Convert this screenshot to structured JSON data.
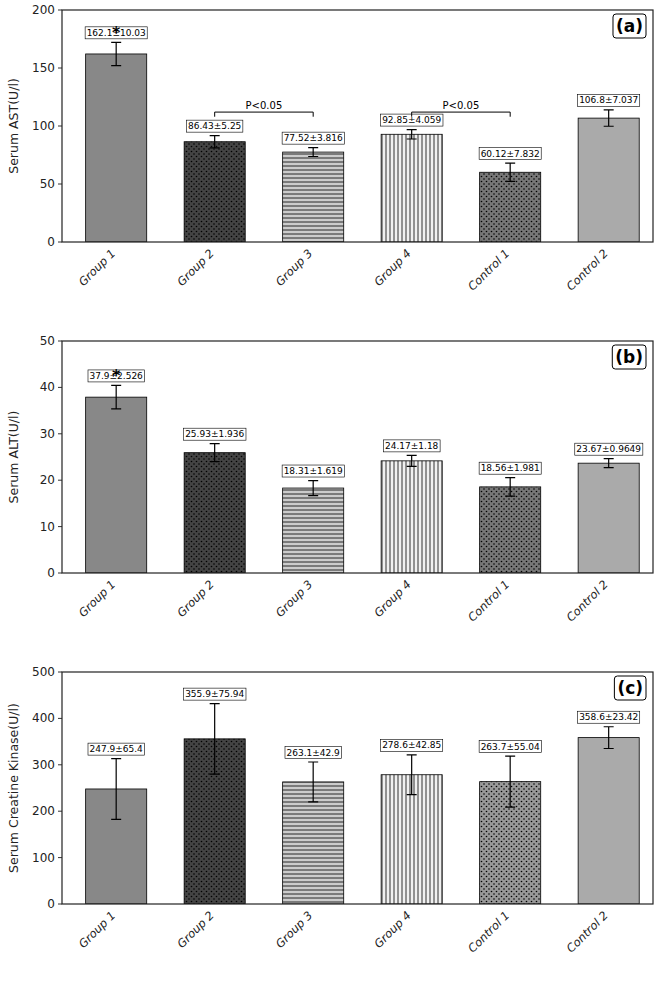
{
  "chart_data": [
    {
      "type": "bar",
      "title": "(a)",
      "ylabel": "Serum AST(U/l)",
      "categories": [
        "Group 1",
        "Group 2",
        "Group 3",
        "Group 4",
        "Control 1",
        "Control 2"
      ],
      "values": [
        162.1,
        86.43,
        77.52,
        92.85,
        60.12,
        106.8
      ],
      "errors": [
        10.03,
        5.25,
        3.816,
        4.059,
        7.832,
        7.037
      ],
      "value_labels": [
        "162.1±10.03",
        "86.43±5.25",
        "77.52±3.816",
        "92.85±4.059",
        "60.12±7.832",
        "106.8±7.037"
      ],
      "data_labels": true,
      "colors": [
        "#888888",
        "#444444",
        "#cccccc",
        "#f0f0f0",
        "#777777",
        "#aaaaaa"
      ],
      "ylim": [
        0,
        200
      ],
      "yticks": [
        0,
        50,
        100,
        150,
        200
      ],
      "grid": false,
      "annotations": [
        {
          "text": "*",
          "category": "Group 1"
        },
        {
          "text": "P<0.05",
          "between": [
            "Group 2",
            "Group 3"
          ],
          "y": 112
        },
        {
          "text": "P<0.05",
          "between": [
            "Group 4",
            "Control 1"
          ],
          "y": 112
        }
      ]
    },
    {
      "type": "bar",
      "title": "(b)",
      "ylabel": "Serum ALT(U/l)",
      "categories": [
        "Group 1",
        "Group 2",
        "Group 3",
        "Group 4",
        "Control 1",
        "Control 2"
      ],
      "values": [
        37.9,
        25.93,
        18.31,
        24.17,
        18.56,
        23.67
      ],
      "errors": [
        2.526,
        1.936,
        1.619,
        1.18,
        1.981,
        0.9649
      ],
      "value_labels": [
        "37.9±2.526",
        "25.93±1.936",
        "18.31±1.619",
        "24.17±1.18",
        "18.56±1.981",
        "23.67±0.9649"
      ],
      "data_labels": true,
      "colors": [
        "#888888",
        "#444444",
        "#cccccc",
        "#f0f0f0",
        "#777777",
        "#aaaaaa"
      ],
      "ylim": [
        0,
        50
      ],
      "yticks": [
        0,
        10,
        20,
        30,
        40,
        50
      ],
      "grid": false,
      "annotations": [
        {
          "text": "*",
          "category": "Group 1"
        }
      ]
    },
    {
      "type": "bar",
      "title": "(c)",
      "ylabel": "Serum Creatine Kinase(U/l)",
      "categories": [
        "Group 1",
        "Group 2",
        "Group 3",
        "Group 4",
        "Control 1",
        "Control 2"
      ],
      "values": [
        247.9,
        355.9,
        263.1,
        278.6,
        263.7,
        358.6
      ],
      "errors": [
        65.4,
        75.94,
        42.9,
        42.85,
        55.04,
        23.42
      ],
      "value_labels": [
        "247.9±65.4",
        "355.9±75.94",
        "263.1±42.9",
        "278.6±42.85",
        "263.7±55.04",
        "358.6±23.42"
      ],
      "data_labels": true,
      "colors": [
        "#888888",
        "#444444",
        "#cccccc",
        "#f0f0f0",
        "#999999",
        "#aaaaaa"
      ],
      "ylim": [
        0,
        500
      ],
      "yticks": [
        0,
        100,
        200,
        300,
        400,
        500
      ],
      "grid": false,
      "annotations": []
    }
  ]
}
